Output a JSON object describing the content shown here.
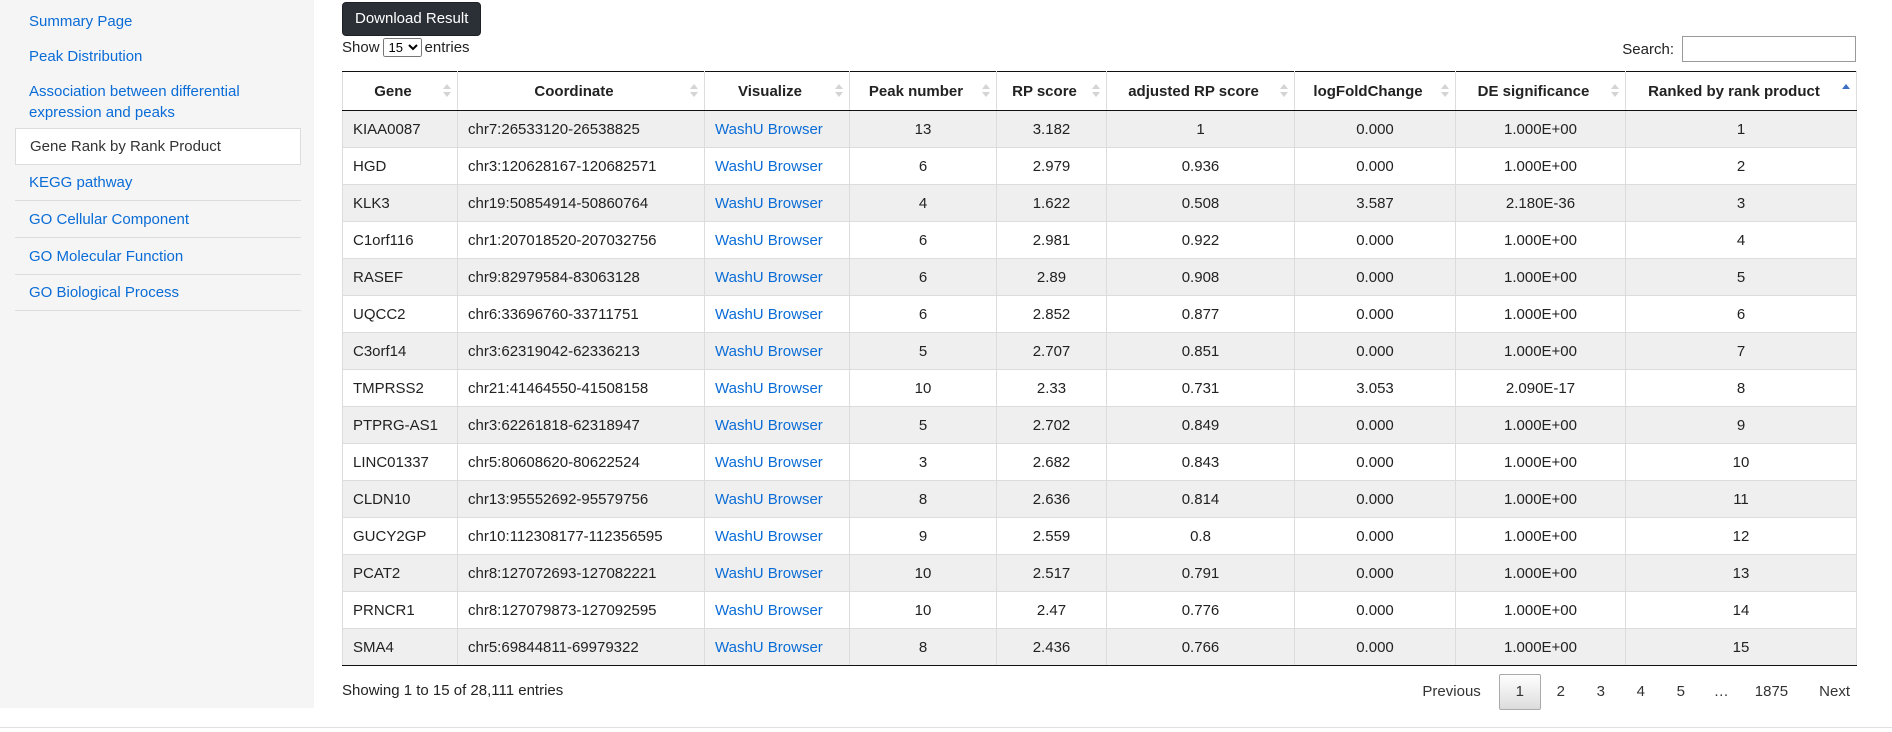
{
  "sidebar": {
    "items": [
      {
        "label": "Summary Page"
      },
      {
        "label": "Peak Distribution"
      },
      {
        "label": "Association between differential expression and peaks"
      },
      {
        "label": "Gene Rank by Rank Product"
      },
      {
        "label": "KEGG pathway"
      },
      {
        "label": "GO Cellular Component"
      },
      {
        "label": "GO Molecular Function"
      },
      {
        "label": "GO Biological Process"
      }
    ],
    "active_index": 3
  },
  "toolbar": {
    "download_label": "Download Result"
  },
  "length": {
    "show_label": "Show",
    "value": "15",
    "entries_label": "entries"
  },
  "search": {
    "label": "Search:",
    "value": ""
  },
  "table": {
    "headers": [
      "Gene",
      "Coordinate",
      "Visualize",
      "Peak number",
      "RP score",
      "adjusted RP score",
      "logFoldChange",
      "DE significance",
      "Ranked by rank product"
    ],
    "sorted_column": 8,
    "sort_direction": "asc",
    "rows": [
      [
        "KIAA0087",
        "chr7:26533120-26538825",
        "WashU Browser",
        "13",
        "3.182",
        "1",
        "0.000",
        "1.000E+00",
        "1"
      ],
      [
        "HGD",
        "chr3:120628167-120682571",
        "WashU Browser",
        "6",
        "2.979",
        "0.936",
        "0.000",
        "1.000E+00",
        "2"
      ],
      [
        "KLK3",
        "chr19:50854914-50860764",
        "WashU Browser",
        "4",
        "1.622",
        "0.508",
        "3.587",
        "2.180E-36",
        "3"
      ],
      [
        "C1orf116",
        "chr1:207018520-207032756",
        "WashU Browser",
        "6",
        "2.981",
        "0.922",
        "0.000",
        "1.000E+00",
        "4"
      ],
      [
        "RASEF",
        "chr9:82979584-83063128",
        "WashU Browser",
        "6",
        "2.89",
        "0.908",
        "0.000",
        "1.000E+00",
        "5"
      ],
      [
        "UQCC2",
        "chr6:33696760-33711751",
        "WashU Browser",
        "6",
        "2.852",
        "0.877",
        "0.000",
        "1.000E+00",
        "6"
      ],
      [
        "C3orf14",
        "chr3:62319042-62336213",
        "WashU Browser",
        "5",
        "2.707",
        "0.851",
        "0.000",
        "1.000E+00",
        "7"
      ],
      [
        "TMPRSS2",
        "chr21:41464550-41508158",
        "WashU Browser",
        "10",
        "2.33",
        "0.731",
        "3.053",
        "2.090E-17",
        "8"
      ],
      [
        "PTPRG-AS1",
        "chr3:62261818-62318947",
        "WashU Browser",
        "5",
        "2.702",
        "0.849",
        "0.000",
        "1.000E+00",
        "9"
      ],
      [
        "LINC01337",
        "chr5:80608620-80622524",
        "WashU Browser",
        "3",
        "2.682",
        "0.843",
        "0.000",
        "1.000E+00",
        "10"
      ],
      [
        "CLDN10",
        "chr13:95552692-95579756",
        "WashU Browser",
        "8",
        "2.636",
        "0.814",
        "0.000",
        "1.000E+00",
        "11"
      ],
      [
        "GUCY2GP",
        "chr10:112308177-112356595",
        "WashU Browser",
        "9",
        "2.559",
        "0.8",
        "0.000",
        "1.000E+00",
        "12"
      ],
      [
        "PCAT2",
        "chr8:127072693-127082221",
        "WashU Browser",
        "10",
        "2.517",
        "0.791",
        "0.000",
        "1.000E+00",
        "13"
      ],
      [
        "PRNCR1",
        "chr8:127079873-127092595",
        "WashU Browser",
        "10",
        "2.47",
        "0.776",
        "0.000",
        "1.000E+00",
        "14"
      ],
      [
        "SMA4",
        "chr5:69844811-69979322",
        "WashU Browser",
        "8",
        "2.436",
        "0.766",
        "0.000",
        "1.000E+00",
        "15"
      ]
    ]
  },
  "info": {
    "text": "Showing 1 to 15 of 28,111 entries"
  },
  "pagination": {
    "previous": "Previous",
    "pages": [
      "1",
      "2",
      "3",
      "4",
      "5",
      "…",
      "1875"
    ],
    "current": "1",
    "next": "Next"
  },
  "colors": {
    "link": "#0a6cd6",
    "button_bg": "#2b3036",
    "row_stripe": "#efefef",
    "sort_active": "#3d70c4"
  }
}
